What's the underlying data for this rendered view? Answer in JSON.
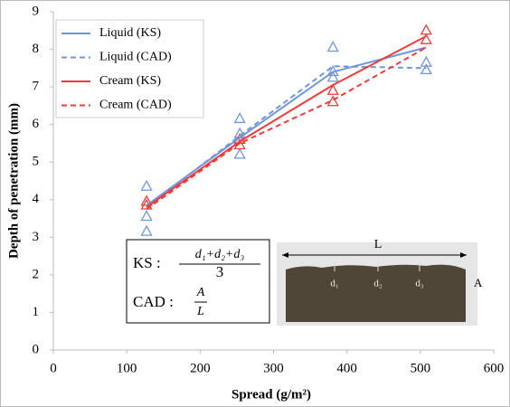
{
  "chart_data": {
    "type": "line",
    "x_label": "Spread (g/m²)",
    "y_label": "Depth of penetration (mm)",
    "xlim": [
      0,
      600
    ],
    "xticks": [
      0,
      100,
      200,
      300,
      400,
      500,
      600
    ],
    "ylim": [
      0,
      9
    ],
    "yticks": [
      0,
      1,
      2,
      3,
      4,
      5,
      6,
      7,
      8,
      9
    ],
    "grid": false,
    "legend": "upper left",
    "series": [
      {
        "name": "Liquid (KS)",
        "color": "#6f96d8",
        "style": "solid",
        "x": [
          127,
          254,
          381,
          508
        ],
        "values": [
          3.85,
          5.65,
          7.4,
          8.05
        ]
      },
      {
        "name": "Liquid (CAD)",
        "color": "#6f96d8",
        "style": "dashed",
        "x": [
          127,
          254,
          381,
          508
        ],
        "values": [
          3.8,
          5.7,
          7.55,
          7.5
        ]
      },
      {
        "name": "Cream (KS)",
        "color": "#ee3b3b",
        "style": "solid",
        "x": [
          127,
          254,
          381,
          508
        ],
        "values": [
          3.8,
          5.55,
          7.05,
          8.35
        ]
      },
      {
        "name": "Cream (CAD)",
        "color": "#ee3b3b",
        "style": "dashed",
        "x": [
          127,
          254,
          381,
          508
        ],
        "values": [
          3.75,
          5.5,
          6.65,
          8.05
        ]
      }
    ],
    "markers": [
      {
        "color": "#6f96d8",
        "x": [
          127,
          127,
          127,
          254,
          254,
          254,
          381,
          381,
          381,
          508,
          508
        ],
        "values": [
          4.35,
          3.55,
          3.15,
          6.15,
          5.75,
          5.2,
          8.05,
          7.4,
          7.25,
          7.65,
          7.45
        ]
      },
      {
        "color": "#ee3b3b",
        "x": [
          127,
          127,
          254,
          254,
          381,
          381,
          508,
          508
        ],
        "values": [
          3.95,
          3.85,
          5.6,
          5.45,
          6.9,
          6.6,
          8.5,
          8.25
        ]
      }
    ],
    "inset": {
      "formula": {
        "ks": "KS :",
        "ks_numerator": "d₁+d₂+d₃",
        "ks_denominator": "3",
        "cad": "CAD :",
        "cad_numerator": "A",
        "cad_denominator": "L"
      },
      "photo_labels": {
        "length": "L",
        "d1": "d₁",
        "d2": "d₂",
        "d3": "d₃",
        "area": "A"
      }
    }
  }
}
